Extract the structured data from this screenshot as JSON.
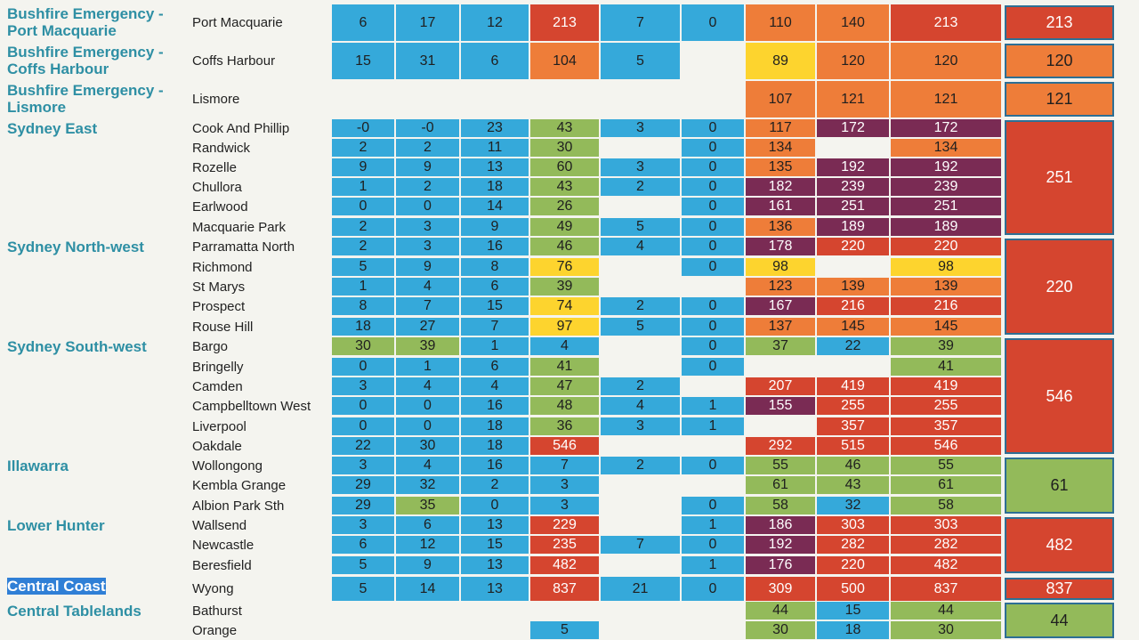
{
  "colors": {
    "blue": "#35a9da",
    "green": "#93ba5a",
    "yellow": "#fdd42e",
    "orange": "#ee7d39",
    "red": "#d5452f",
    "purple": "#7a2b54",
    "empty": "#f4f4ef",
    "outline": "#2d6f94"
  },
  "regions": [
    {
      "name": "Bushfire Emergency -\nPort Macquarie",
      "startRow": 0,
      "endRow": 0,
      "max": "213",
      "maxColor": "red"
    },
    {
      "name": "Bushfire Emergency -\nCoffs Harbour",
      "startRow": 1,
      "endRow": 1,
      "max": "120",
      "maxColor": "orange"
    },
    {
      "name": "Bushfire Emergency -\nLismore",
      "startRow": 2,
      "endRow": 2,
      "max": "121",
      "maxColor": "orange"
    },
    {
      "name": "Sydney East",
      "startRow": 3,
      "endRow": 8,
      "max": "251",
      "maxColor": "red"
    },
    {
      "name": "Sydney North-west",
      "startRow": 9,
      "endRow": 13,
      "max": "220",
      "maxColor": "red"
    },
    {
      "name": "Sydney South-west",
      "startRow": 14,
      "endRow": 19,
      "max": "546",
      "maxColor": "red"
    },
    {
      "name": "Illawarra",
      "startRow": 20,
      "endRow": 22,
      "max": "61",
      "maxColor": "green"
    },
    {
      "name": "Lower Hunter",
      "startRow": 23,
      "endRow": 25,
      "max": "482",
      "maxColor": "red"
    },
    {
      "name": "Central Coast",
      "startRow": 26,
      "endRow": 26,
      "max": "837",
      "maxColor": "red",
      "selected": true
    },
    {
      "name": "Central Tablelands",
      "startRow": 27,
      "endRow": 28,
      "max": "44",
      "maxColor": "green"
    }
  ],
  "rows": [
    {
      "site": "Port Macquarie",
      "cells": [
        [
          "6",
          "blue"
        ],
        [
          "17",
          "blue"
        ],
        [
          "12",
          "blue"
        ],
        [
          "213",
          "red"
        ],
        [
          "7",
          "blue"
        ],
        [
          "0",
          "blue"
        ],
        [
          "110",
          "orange"
        ],
        [
          "140",
          "orange"
        ],
        [
          "213",
          "red"
        ]
      ]
    },
    {
      "site": "Coffs Harbour",
      "cells": [
        [
          "15",
          "blue"
        ],
        [
          "31",
          "blue"
        ],
        [
          "6",
          "blue"
        ],
        [
          "104",
          "orange"
        ],
        [
          "5",
          "blue"
        ],
        [
          "",
          "empty"
        ],
        [
          "89",
          "yellow"
        ],
        [
          "120",
          "orange"
        ],
        [
          "120",
          "orange"
        ]
      ]
    },
    {
      "site": "Lismore",
      "cells": [
        [
          "",
          "empty"
        ],
        [
          "",
          "empty"
        ],
        [
          "",
          "empty"
        ],
        [
          "",
          "empty"
        ],
        [
          "",
          "empty"
        ],
        [
          "",
          "empty"
        ],
        [
          "107",
          "orange"
        ],
        [
          "121",
          "orange"
        ],
        [
          "121",
          "orange"
        ]
      ]
    },
    {
      "site": "Cook And Phillip",
      "cells": [
        [
          "-0",
          "blue"
        ],
        [
          "-0",
          "blue"
        ],
        [
          "23",
          "blue"
        ],
        [
          "43",
          "green"
        ],
        [
          "3",
          "blue"
        ],
        [
          "0",
          "blue"
        ],
        [
          "117",
          "orange"
        ],
        [
          "172",
          "purple"
        ],
        [
          "172",
          "purple"
        ]
      ]
    },
    {
      "site": "Randwick",
      "cells": [
        [
          "2",
          "blue"
        ],
        [
          "2",
          "blue"
        ],
        [
          "11",
          "blue"
        ],
        [
          "30",
          "green"
        ],
        [
          "",
          "empty"
        ],
        [
          "0",
          "blue"
        ],
        [
          "134",
          "orange"
        ],
        [
          "",
          "empty"
        ],
        [
          "134",
          "orange"
        ]
      ]
    },
    {
      "site": "Rozelle",
      "cells": [
        [
          "9",
          "blue"
        ],
        [
          "9",
          "blue"
        ],
        [
          "13",
          "blue"
        ],
        [
          "60",
          "green"
        ],
        [
          "3",
          "blue"
        ],
        [
          "0",
          "blue"
        ],
        [
          "135",
          "orange"
        ],
        [
          "192",
          "purple"
        ],
        [
          "192",
          "purple"
        ]
      ]
    },
    {
      "site": "Chullora",
      "cells": [
        [
          "1",
          "blue"
        ],
        [
          "2",
          "blue"
        ],
        [
          "18",
          "blue"
        ],
        [
          "43",
          "green"
        ],
        [
          "2",
          "blue"
        ],
        [
          "0",
          "blue"
        ],
        [
          "182",
          "purple"
        ],
        [
          "239",
          "purple"
        ],
        [
          "239",
          "purple"
        ]
      ]
    },
    {
      "site": "Earlwood",
      "cells": [
        [
          "0",
          "blue"
        ],
        [
          "0",
          "blue"
        ],
        [
          "14",
          "blue"
        ],
        [
          "26",
          "green"
        ],
        [
          "",
          "empty"
        ],
        [
          "0",
          "blue"
        ],
        [
          "161",
          "purple"
        ],
        [
          "251",
          "purple"
        ],
        [
          "251",
          "purple"
        ]
      ]
    },
    {
      "site": "Macquarie Park",
      "cells": [
        [
          "2",
          "blue"
        ],
        [
          "3",
          "blue"
        ],
        [
          "9",
          "blue"
        ],
        [
          "49",
          "green"
        ],
        [
          "5",
          "blue"
        ],
        [
          "0",
          "blue"
        ],
        [
          "136",
          "orange"
        ],
        [
          "189",
          "purple"
        ],
        [
          "189",
          "purple"
        ]
      ]
    },
    {
      "site": "Parramatta North",
      "cells": [
        [
          "2",
          "blue"
        ],
        [
          "3",
          "blue"
        ],
        [
          "16",
          "blue"
        ],
        [
          "46",
          "green"
        ],
        [
          "4",
          "blue"
        ],
        [
          "0",
          "blue"
        ],
        [
          "178",
          "purple"
        ],
        [
          "220",
          "red"
        ],
        [
          "220",
          "red"
        ]
      ]
    },
    {
      "site": "Richmond",
      "cells": [
        [
          "5",
          "blue"
        ],
        [
          "9",
          "blue"
        ],
        [
          "8",
          "blue"
        ],
        [
          "76",
          "yellow"
        ],
        [
          "",
          "empty"
        ],
        [
          "0",
          "blue"
        ],
        [
          "98",
          "yellow"
        ],
        [
          "",
          "empty"
        ],
        [
          "98",
          "yellow"
        ]
      ]
    },
    {
      "site": "St Marys",
      "cells": [
        [
          "1",
          "blue"
        ],
        [
          "4",
          "blue"
        ],
        [
          "6",
          "blue"
        ],
        [
          "39",
          "green"
        ],
        [
          "",
          "empty"
        ],
        [
          "",
          "empty"
        ],
        [
          "123",
          "orange"
        ],
        [
          "139",
          "orange"
        ],
        [
          "139",
          "orange"
        ]
      ]
    },
    {
      "site": "Prospect",
      "cells": [
        [
          "8",
          "blue"
        ],
        [
          "7",
          "blue"
        ],
        [
          "15",
          "blue"
        ],
        [
          "74",
          "yellow"
        ],
        [
          "2",
          "blue"
        ],
        [
          "0",
          "blue"
        ],
        [
          "167",
          "purple"
        ],
        [
          "216",
          "red"
        ],
        [
          "216",
          "red"
        ]
      ]
    },
    {
      "site": "Rouse Hill",
      "cells": [
        [
          "18",
          "blue"
        ],
        [
          "27",
          "blue"
        ],
        [
          "7",
          "blue"
        ],
        [
          "97",
          "yellow"
        ],
        [
          "5",
          "blue"
        ],
        [
          "0",
          "blue"
        ],
        [
          "137",
          "orange"
        ],
        [
          "145",
          "orange"
        ],
        [
          "145",
          "orange"
        ]
      ]
    },
    {
      "site": "Bargo",
      "cells": [
        [
          "30",
          "green"
        ],
        [
          "39",
          "green"
        ],
        [
          "1",
          "blue"
        ],
        [
          "4",
          "blue"
        ],
        [
          "",
          "empty"
        ],
        [
          "0",
          "blue"
        ],
        [
          "37",
          "green"
        ],
        [
          "22",
          "blue"
        ],
        [
          "39",
          "green"
        ]
      ]
    },
    {
      "site": "Bringelly",
      "cells": [
        [
          "0",
          "blue"
        ],
        [
          "1",
          "blue"
        ],
        [
          "6",
          "blue"
        ],
        [
          "41",
          "green"
        ],
        [
          "",
          "empty"
        ],
        [
          "0",
          "blue"
        ],
        [
          "",
          "empty"
        ],
        [
          "",
          "empty"
        ],
        [
          "41",
          "green"
        ]
      ]
    },
    {
      "site": "Camden",
      "cells": [
        [
          "3",
          "blue"
        ],
        [
          "4",
          "blue"
        ],
        [
          "4",
          "blue"
        ],
        [
          "47",
          "green"
        ],
        [
          "2",
          "blue"
        ],
        [
          "",
          "empty"
        ],
        [
          "207",
          "red"
        ],
        [
          "419",
          "red"
        ],
        [
          "419",
          "red"
        ]
      ]
    },
    {
      "site": "Campbelltown West",
      "cells": [
        [
          "0",
          "blue"
        ],
        [
          "0",
          "blue"
        ],
        [
          "16",
          "blue"
        ],
        [
          "48",
          "green"
        ],
        [
          "4",
          "blue"
        ],
        [
          "1",
          "blue"
        ],
        [
          "155",
          "purple"
        ],
        [
          "255",
          "red"
        ],
        [
          "255",
          "red"
        ]
      ]
    },
    {
      "site": "Liverpool",
      "cells": [
        [
          "0",
          "blue"
        ],
        [
          "0",
          "blue"
        ],
        [
          "18",
          "blue"
        ],
        [
          "36",
          "green"
        ],
        [
          "3",
          "blue"
        ],
        [
          "1",
          "blue"
        ],
        [
          "",
          "empty"
        ],
        [
          "357",
          "red"
        ],
        [
          "357",
          "red"
        ]
      ]
    },
    {
      "site": "Oakdale",
      "cells": [
        [
          "22",
          "blue"
        ],
        [
          "30",
          "blue"
        ],
        [
          "18",
          "blue"
        ],
        [
          "546",
          "red"
        ],
        [
          "",
          "empty"
        ],
        [
          "",
          "empty"
        ],
        [
          "292",
          "red"
        ],
        [
          "515",
          "red"
        ],
        [
          "546",
          "red"
        ]
      ]
    },
    {
      "site": "Wollongong",
      "cells": [
        [
          "3",
          "blue"
        ],
        [
          "4",
          "blue"
        ],
        [
          "16",
          "blue"
        ],
        [
          "7",
          "blue"
        ],
        [
          "2",
          "blue"
        ],
        [
          "0",
          "blue"
        ],
        [
          "55",
          "green"
        ],
        [
          "46",
          "green"
        ],
        [
          "55",
          "green"
        ]
      ]
    },
    {
      "site": "Kembla Grange",
      "cells": [
        [
          "29",
          "blue"
        ],
        [
          "32",
          "blue"
        ],
        [
          "2",
          "blue"
        ],
        [
          "3",
          "blue"
        ],
        [
          "",
          "empty"
        ],
        [
          "",
          "empty"
        ],
        [
          "61",
          "green"
        ],
        [
          "43",
          "green"
        ],
        [
          "61",
          "green"
        ]
      ]
    },
    {
      "site": "Albion Park Sth",
      "cells": [
        [
          "29",
          "blue"
        ],
        [
          "35",
          "green"
        ],
        [
          "0",
          "blue"
        ],
        [
          "3",
          "blue"
        ],
        [
          "",
          "empty"
        ],
        [
          "0",
          "blue"
        ],
        [
          "58",
          "green"
        ],
        [
          "32",
          "blue"
        ],
        [
          "58",
          "green"
        ]
      ]
    },
    {
      "site": "Wallsend",
      "cells": [
        [
          "3",
          "blue"
        ],
        [
          "6",
          "blue"
        ],
        [
          "13",
          "blue"
        ],
        [
          "229",
          "red"
        ],
        [
          "",
          "empty"
        ],
        [
          "1",
          "blue"
        ],
        [
          "186",
          "purple"
        ],
        [
          "303",
          "red"
        ],
        [
          "303",
          "red"
        ]
      ]
    },
    {
      "site": "Newcastle",
      "cells": [
        [
          "6",
          "blue"
        ],
        [
          "12",
          "blue"
        ],
        [
          "15",
          "blue"
        ],
        [
          "235",
          "red"
        ],
        [
          "7",
          "blue"
        ],
        [
          "0",
          "blue"
        ],
        [
          "192",
          "purple"
        ],
        [
          "282",
          "red"
        ],
        [
          "282",
          "red"
        ]
      ]
    },
    {
      "site": "Beresfield",
      "cells": [
        [
          "5",
          "blue"
        ],
        [
          "9",
          "blue"
        ],
        [
          "13",
          "blue"
        ],
        [
          "482",
          "red"
        ],
        [
          "",
          "empty"
        ],
        [
          "1",
          "blue"
        ],
        [
          "176",
          "purple"
        ],
        [
          "220",
          "red"
        ],
        [
          "482",
          "red"
        ]
      ]
    },
    {
      "site": "Wyong",
      "cells": [
        [
          "5",
          "blue"
        ],
        [
          "14",
          "blue"
        ],
        [
          "13",
          "blue"
        ],
        [
          "837",
          "red"
        ],
        [
          "21",
          "blue"
        ],
        [
          "0",
          "blue"
        ],
        [
          "309",
          "red"
        ],
        [
          "500",
          "red"
        ],
        [
          "837",
          "red"
        ]
      ]
    },
    {
      "site": "Bathurst",
      "cells": [
        [
          "",
          "empty"
        ],
        [
          "",
          "empty"
        ],
        [
          "",
          "empty"
        ],
        [
          "",
          "empty"
        ],
        [
          "",
          "empty"
        ],
        [
          "",
          "empty"
        ],
        [
          "44",
          "green"
        ],
        [
          "15",
          "blue"
        ],
        [
          "44",
          "green"
        ]
      ]
    },
    {
      "site": "Orange",
      "cells": [
        [
          "",
          "empty"
        ],
        [
          "",
          "empty"
        ],
        [
          "",
          "empty"
        ],
        [
          "5",
          "blue"
        ],
        [
          "",
          "empty"
        ],
        [
          "",
          "empty"
        ],
        [
          "30",
          "green"
        ],
        [
          "18",
          "blue"
        ],
        [
          "30",
          "green"
        ]
      ]
    }
  ]
}
